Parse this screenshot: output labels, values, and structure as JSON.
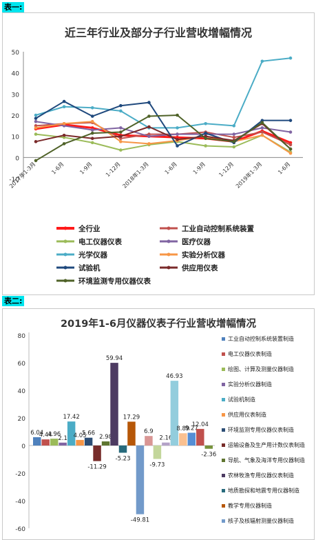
{
  "tags": {
    "t1": "表一:",
    "t2": "表二:"
  },
  "chart_data": [
    {
      "type": "line",
      "title": "近三年行业及部分子行业营收增幅情况",
      "categories": [
        "2017年1-3月",
        "1-6月",
        "1-9月",
        "1-12月",
        "2018年1-3月",
        "1-6月",
        "1-9月",
        "1-12月",
        "2019年1-3月",
        "1-6月"
      ],
      "ylim": [
        -10,
        50
      ],
      "yticks": [
        -10,
        0,
        10,
        20,
        30,
        40,
        50
      ],
      "grid": false,
      "legend_placement": "bottom",
      "series": [
        {
          "name": "全行业",
          "color": "#ff1a1a",
          "width": 3,
          "values": [
            13.5,
            15.5,
            14.0,
            10.5,
            10.0,
            9.5,
            9.0,
            7.5,
            12.5,
            7.0
          ]
        },
        {
          "name": "工业自动控制系统装置",
          "color": "#c0504d",
          "width": 2,
          "values": [
            15.0,
            16.0,
            16.5,
            9.0,
            11.0,
            11.0,
            12.0,
            9.5,
            12.0,
            6.0
          ]
        },
        {
          "name": "电工仪器仪表",
          "color": "#9bbb59",
          "width": 2,
          "values": [
            11.0,
            9.5,
            7.0,
            3.5,
            6.0,
            7.5,
            5.5,
            5.0,
            10.5,
            2.5
          ]
        },
        {
          "name": "医疗仪器",
          "color": "#8064a2",
          "width": 2,
          "values": [
            17.0,
            15.0,
            13.0,
            14.0,
            10.0,
            11.0,
            11.0,
            11.0,
            14.0,
            12.0
          ]
        },
        {
          "name": "光学仪器",
          "color": "#4bacc6",
          "width": 2,
          "values": [
            20.0,
            24.0,
            23.5,
            22.0,
            14.0,
            14.0,
            16.0,
            15.0,
            45.5,
            47.0
          ]
        },
        {
          "name": "实验分析仪器",
          "color": "#f79646",
          "width": 2,
          "values": [
            14.0,
            16.0,
            17.0,
            7.5,
            6.5,
            8.0,
            10.0,
            7.5,
            10.5,
            2.0
          ]
        },
        {
          "name": "试验机",
          "color": "#1f497d",
          "width": 2,
          "values": [
            18.5,
            26.5,
            19.5,
            24.5,
            26.0,
            5.5,
            11.5,
            7.0,
            17.5,
            17.5
          ]
        },
        {
          "name": "供应用仪表",
          "color": "#7a2a2a",
          "width": 2,
          "values": [
            7.5,
            10.5,
            9.0,
            10.0,
            14.5,
            8.5,
            10.0,
            8.0,
            16.0,
            4.0
          ]
        },
        {
          "name": "环境监测专用仪器仪表",
          "color": "#4f6228",
          "width": 2,
          "values": [
            -1.5,
            6.5,
            11.5,
            12.0,
            19.5,
            20.0,
            9.0,
            7.5,
            16.5,
            4.0
          ]
        }
      ]
    },
    {
      "type": "bar",
      "title": "2019年1-6月仪器仪表子行业营收增幅情况",
      "ylim": [
        -60,
        80
      ],
      "yticks": [
        -60,
        -40,
        -20,
        0,
        20,
        40,
        60,
        80
      ],
      "grid": false,
      "legend_placement": "right",
      "series": [
        {
          "name": "工业自动控制系统装置制造",
          "color": "#4f81bd",
          "value": 6.04
        },
        {
          "name": "电工仪器仪表制造",
          "color": "#c0504d",
          "value": 4.44
        },
        {
          "name": "绘图、计算及测量仪器制造",
          "color": "#9bbb59",
          "value": 4.96
        },
        {
          "name": "实验分析仪器制造",
          "color": "#8064a2",
          "value": 2.1
        },
        {
          "name": "试验机制造",
          "color": "#4bacc6",
          "value": 17.42
        },
        {
          "name": "供应用仪表制造",
          "color": "#f79646",
          "value": 4.05
        },
        {
          "name": "环境监测专用仪器仪表制造",
          "color": "#2c4d75",
          "value": 5.66
        },
        {
          "name": "运输设备及生产用计数仪表制造",
          "color": "#772c2a",
          "value": -11.29
        },
        {
          "name": "导航、气象及海洋专用仪器制造",
          "color": "#5f7530",
          "value": 2.98
        },
        {
          "name": "农林牧渔专用仪器仪表制造",
          "color": "#4d3b62",
          "value": 59.94
        },
        {
          "name": "地质勘探和地震专用仪器制造",
          "color": "#276a7c",
          "value": -5.23
        },
        {
          "name": "教学专用仪器制造",
          "color": "#b65708",
          "value": 17.29
        },
        {
          "name": "核子及核辐射测量仪器制造",
          "color": "#729aca",
          "value": -49.81
        },
        {
          "name": "",
          "color": "#d99694",
          "value": 6.9
        },
        {
          "name": "",
          "color": "#c3d69b",
          "value": -9.73
        },
        {
          "name": "",
          "color": "#b3a2c7",
          "value": 2.16
        },
        {
          "name": "",
          "color": "#93cddd",
          "value": 46.93
        },
        {
          "name": "",
          "color": "#fac090",
          "value": 8.89
        },
        {
          "name": "",
          "color": "#558ed5",
          "value": 9.27
        },
        {
          "name": "",
          "color": "#c0504d",
          "value": 12.04
        },
        {
          "name": "",
          "color": "#77933c",
          "value": -2.36
        }
      ]
    }
  ]
}
